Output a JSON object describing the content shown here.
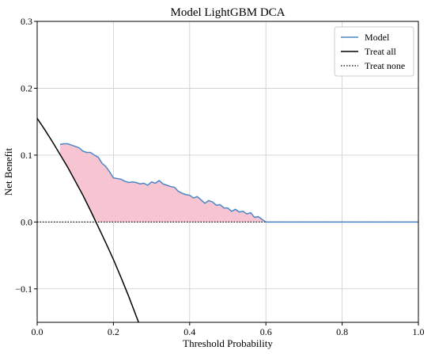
{
  "chart_data": {
    "type": "line",
    "title": "Model LightGBM DCA",
    "xlabel": "Threshold Probability",
    "ylabel": "Net Benefit",
    "xlim": [
      0.0,
      1.0
    ],
    "ylim": [
      -0.15,
      0.3
    ],
    "xticks": [
      0.0,
      0.2,
      0.4,
      0.6,
      0.8,
      1.0
    ],
    "xtick_labels": [
      "0.0",
      "0.2",
      "0.4",
      "0.6",
      "0.8",
      "1.0"
    ],
    "yticks": [
      -0.1,
      0.0,
      0.1,
      0.2,
      0.3
    ],
    "ytick_labels": [
      "−0.1",
      "0.0",
      "0.1",
      "0.2",
      "0.3"
    ],
    "grid": true,
    "legend_position": "top-right",
    "series": [
      {
        "name": "Model",
        "color": "#4a86c5",
        "style": "solid",
        "x": [
          0.06,
          0.07,
          0.08,
          0.09,
          0.1,
          0.11,
          0.12,
          0.13,
          0.14,
          0.15,
          0.16,
          0.17,
          0.18,
          0.19,
          0.2,
          0.21,
          0.22,
          0.23,
          0.24,
          0.25,
          0.26,
          0.27,
          0.28,
          0.29,
          0.3,
          0.31,
          0.32,
          0.33,
          0.34,
          0.35,
          0.36,
          0.37,
          0.38,
          0.39,
          0.4,
          0.41,
          0.42,
          0.43,
          0.44,
          0.45,
          0.46,
          0.47,
          0.48,
          0.49,
          0.5,
          0.51,
          0.52,
          0.53,
          0.54,
          0.55,
          0.56,
          0.57,
          0.58,
          0.59,
          0.6,
          0.62,
          0.65,
          0.7,
          0.75,
          0.8,
          0.85,
          0.9,
          0.95,
          1.0
        ],
        "y": [
          0.116,
          0.117,
          0.117,
          0.115,
          0.113,
          0.111,
          0.106,
          0.104,
          0.104,
          0.1,
          0.097,
          0.088,
          0.083,
          0.075,
          0.066,
          0.065,
          0.064,
          0.061,
          0.059,
          0.06,
          0.059,
          0.057,
          0.058,
          0.055,
          0.06,
          0.058,
          0.062,
          0.057,
          0.055,
          0.053,
          0.052,
          0.046,
          0.043,
          0.041,
          0.04,
          0.036,
          0.038,
          0.033,
          0.028,
          0.032,
          0.03,
          0.025,
          0.026,
          0.021,
          0.021,
          0.016,
          0.019,
          0.015,
          0.016,
          0.012,
          0.014,
          0.007,
          0.008,
          0.004,
          0.0,
          0.0,
          0.0,
          0.0,
          0.0,
          0.0,
          0.0,
          0.0,
          0.0,
          0.0
        ]
      },
      {
        "name": "Treat all",
        "color": "#000000",
        "style": "solid",
        "x": [
          0.0,
          0.02,
          0.04,
          0.06,
          0.08,
          0.1,
          0.12,
          0.14,
          0.16,
          0.18,
          0.2,
          0.22,
          0.24,
          0.26,
          0.27
        ],
        "y": [
          0.155,
          0.138,
          0.12,
          0.101,
          0.082,
          0.061,
          0.04,
          0.017,
          -0.007,
          -0.031,
          -0.056,
          -0.083,
          -0.111,
          -0.141,
          -0.156
        ]
      },
      {
        "name": "Treat none",
        "color": "#000000",
        "style": "dotted",
        "x": [
          0.0,
          1.0
        ],
        "y": [
          0.0,
          0.0
        ]
      }
    ],
    "fill_between": {
      "color": "#f7c5d2",
      "x": [
        0.06,
        0.07,
        0.08,
        0.09,
        0.1,
        0.11,
        0.12,
        0.13,
        0.14,
        0.15,
        0.16,
        0.17,
        0.18,
        0.19,
        0.2,
        0.21,
        0.22,
        0.23,
        0.24,
        0.25,
        0.26,
        0.27,
        0.28,
        0.29,
        0.3,
        0.31,
        0.32,
        0.33,
        0.34,
        0.35,
        0.36,
        0.37,
        0.38,
        0.39,
        0.4,
        0.41,
        0.42,
        0.43,
        0.44,
        0.45,
        0.46,
        0.47,
        0.48,
        0.49,
        0.5,
        0.51,
        0.52,
        0.53,
        0.54,
        0.55,
        0.56,
        0.57,
        0.58,
        0.59,
        0.6
      ],
      "y_upper": [
        0.116,
        0.117,
        0.117,
        0.115,
        0.113,
        0.111,
        0.106,
        0.104,
        0.104,
        0.1,
        0.097,
        0.088,
        0.083,
        0.075,
        0.066,
        0.065,
        0.064,
        0.061,
        0.059,
        0.06,
        0.059,
        0.057,
        0.058,
        0.055,
        0.06,
        0.058,
        0.062,
        0.057,
        0.055,
        0.053,
        0.052,
        0.046,
        0.043,
        0.041,
        0.04,
        0.036,
        0.038,
        0.033,
        0.028,
        0.032,
        0.03,
        0.025,
        0.026,
        0.021,
        0.021,
        0.016,
        0.019,
        0.015,
        0.016,
        0.012,
        0.014,
        0.007,
        0.008,
        0.004,
        0.0
      ],
      "y_lower": [
        0.101,
        0.092,
        0.082,
        0.072,
        0.061,
        0.051,
        0.04,
        0.029,
        0.017,
        0.005,
        0.0,
        0.0,
        0.0,
        0.0,
        0.0,
        0.0,
        0.0,
        0.0,
        0.0,
        0.0,
        0.0,
        0.0,
        0.0,
        0.0,
        0.0,
        0.0,
        0.0,
        0.0,
        0.0,
        0.0,
        0.0,
        0.0,
        0.0,
        0.0,
        0.0,
        0.0,
        0.0,
        0.0,
        0.0,
        0.0,
        0.0,
        0.0,
        0.0,
        0.0,
        0.0,
        0.0,
        0.0,
        0.0,
        0.0,
        0.0,
        0.0,
        0.0,
        0.0,
        0.0,
        0.0
      ]
    }
  }
}
